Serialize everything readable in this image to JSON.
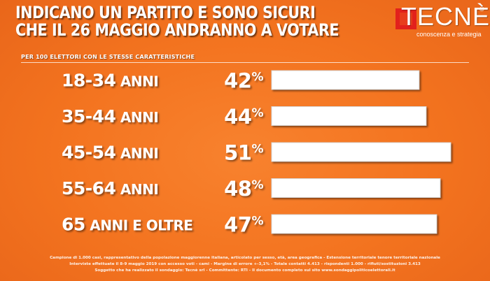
{
  "header": {
    "title_line1": "INDICANO UN PARTITO E SONO SICURI",
    "title_line2": "CHE IL 26 MAGGIO ANDRANNO A VOTARE",
    "subtitle": "PER 100 ELETTORI CON LE STESSE CARATTERISTICHE"
  },
  "logo": {
    "brand": "TECNÈ",
    "tagline": "conoscenza e strategia",
    "registered": "®"
  },
  "colors": {
    "background": "#f3731f",
    "bar_fill": "#ffffff",
    "text": "#ffffff",
    "logo_red": "#e2211c"
  },
  "chart_data": {
    "type": "bar",
    "orientation": "horizontal",
    "title": "INDICANO UN PARTITO E SONO SICURI CHE IL 26 MAGGIO ANDRANNO A VOTARE",
    "subtitle": "PER 100 ELETTORI CON LE STESSE CARATTERISTICHE",
    "categories": [
      "18-34 ANNI",
      "35-44 ANNI",
      "45-54 ANNI",
      "55-64 ANNI",
      "65 ANNI E OLTRE"
    ],
    "category_parts": [
      {
        "num": "18-34",
        "word": "ANNI"
      },
      {
        "num": "35-44",
        "word": "ANNI"
      },
      {
        "num": "45-54",
        "word": "ANNI"
      },
      {
        "num": "55-64",
        "word": "ANNI"
      },
      {
        "num": "65",
        "word": "ANNI E OLTRE"
      }
    ],
    "values": [
      42,
      44,
      51,
      48,
      47
    ],
    "value_labels": [
      "42%",
      "44%",
      "51%",
      "48%",
      "47%"
    ],
    "unit": "%",
    "xlim": [
      0,
      51
    ],
    "grid": false,
    "legend": "none"
  },
  "footnote": {
    "line1": "Campione di 1.000 casi, rappresentativo della popolazione maggiorenne italiana, articolato per sesso, età, area geografica - Estensione territoriale tenore territoriale nazionale",
    "line2": "Interviste effettuate il 8-9 maggio 2019 con accesso voti - cami - Margine di errore +-3,1% - Totale contatti 4.413 - rispondenti 1.000 - rifiuti/sostituzioni 3.413",
    "line3": "Soggetto che ha realizzato il sondaggio: Tecnè srl - Committente: RTI - Il documento completo sul sito www.sondaggipoliticoelettorali.it"
  }
}
